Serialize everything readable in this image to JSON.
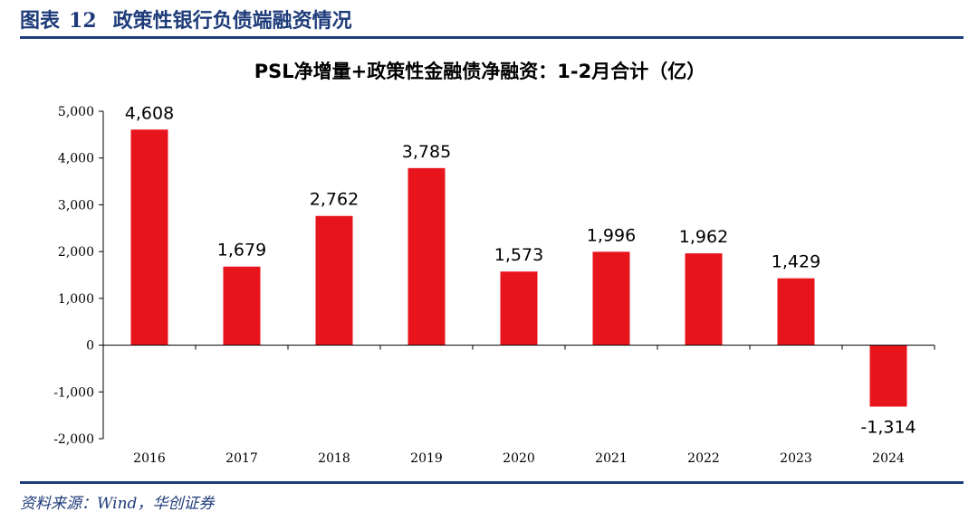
{
  "figure": {
    "label": "图表",
    "number": "12",
    "caption": "政策性银行负债端融资情况",
    "source": "资料来源：Wind，华创证券"
  },
  "colors": {
    "bar": "#e8141c",
    "brand": "#1f3c7a",
    "axis": "#000000"
  },
  "chart_data": {
    "type": "bar",
    "title": "PSL净增量+政策性金融债净融资：1-2月合计（亿）",
    "xlabel": "",
    "ylabel": "",
    "categories": [
      "2016",
      "2017",
      "2018",
      "2019",
      "2020",
      "2021",
      "2022",
      "2023",
      "2024"
    ],
    "values": [
      4608,
      1679,
      2762,
      3785,
      1573,
      1996,
      1962,
      1429,
      -1314
    ],
    "data_labels": [
      "4,608",
      "1,679",
      "2,762",
      "3,785",
      "1,573",
      "1,996",
      "1,962",
      "1,429",
      "-1,314"
    ],
    "ylim": [
      -2000,
      5000
    ],
    "yticks": [
      5000,
      4000,
      3000,
      2000,
      1000,
      0,
      -1000,
      -2000
    ],
    "ytick_labels": [
      "5,000",
      "4,000",
      "3,000",
      "2,000",
      "1,000",
      "0",
      "-1,000",
      "-2,000"
    ],
    "grid": false,
    "legend": "none"
  }
}
